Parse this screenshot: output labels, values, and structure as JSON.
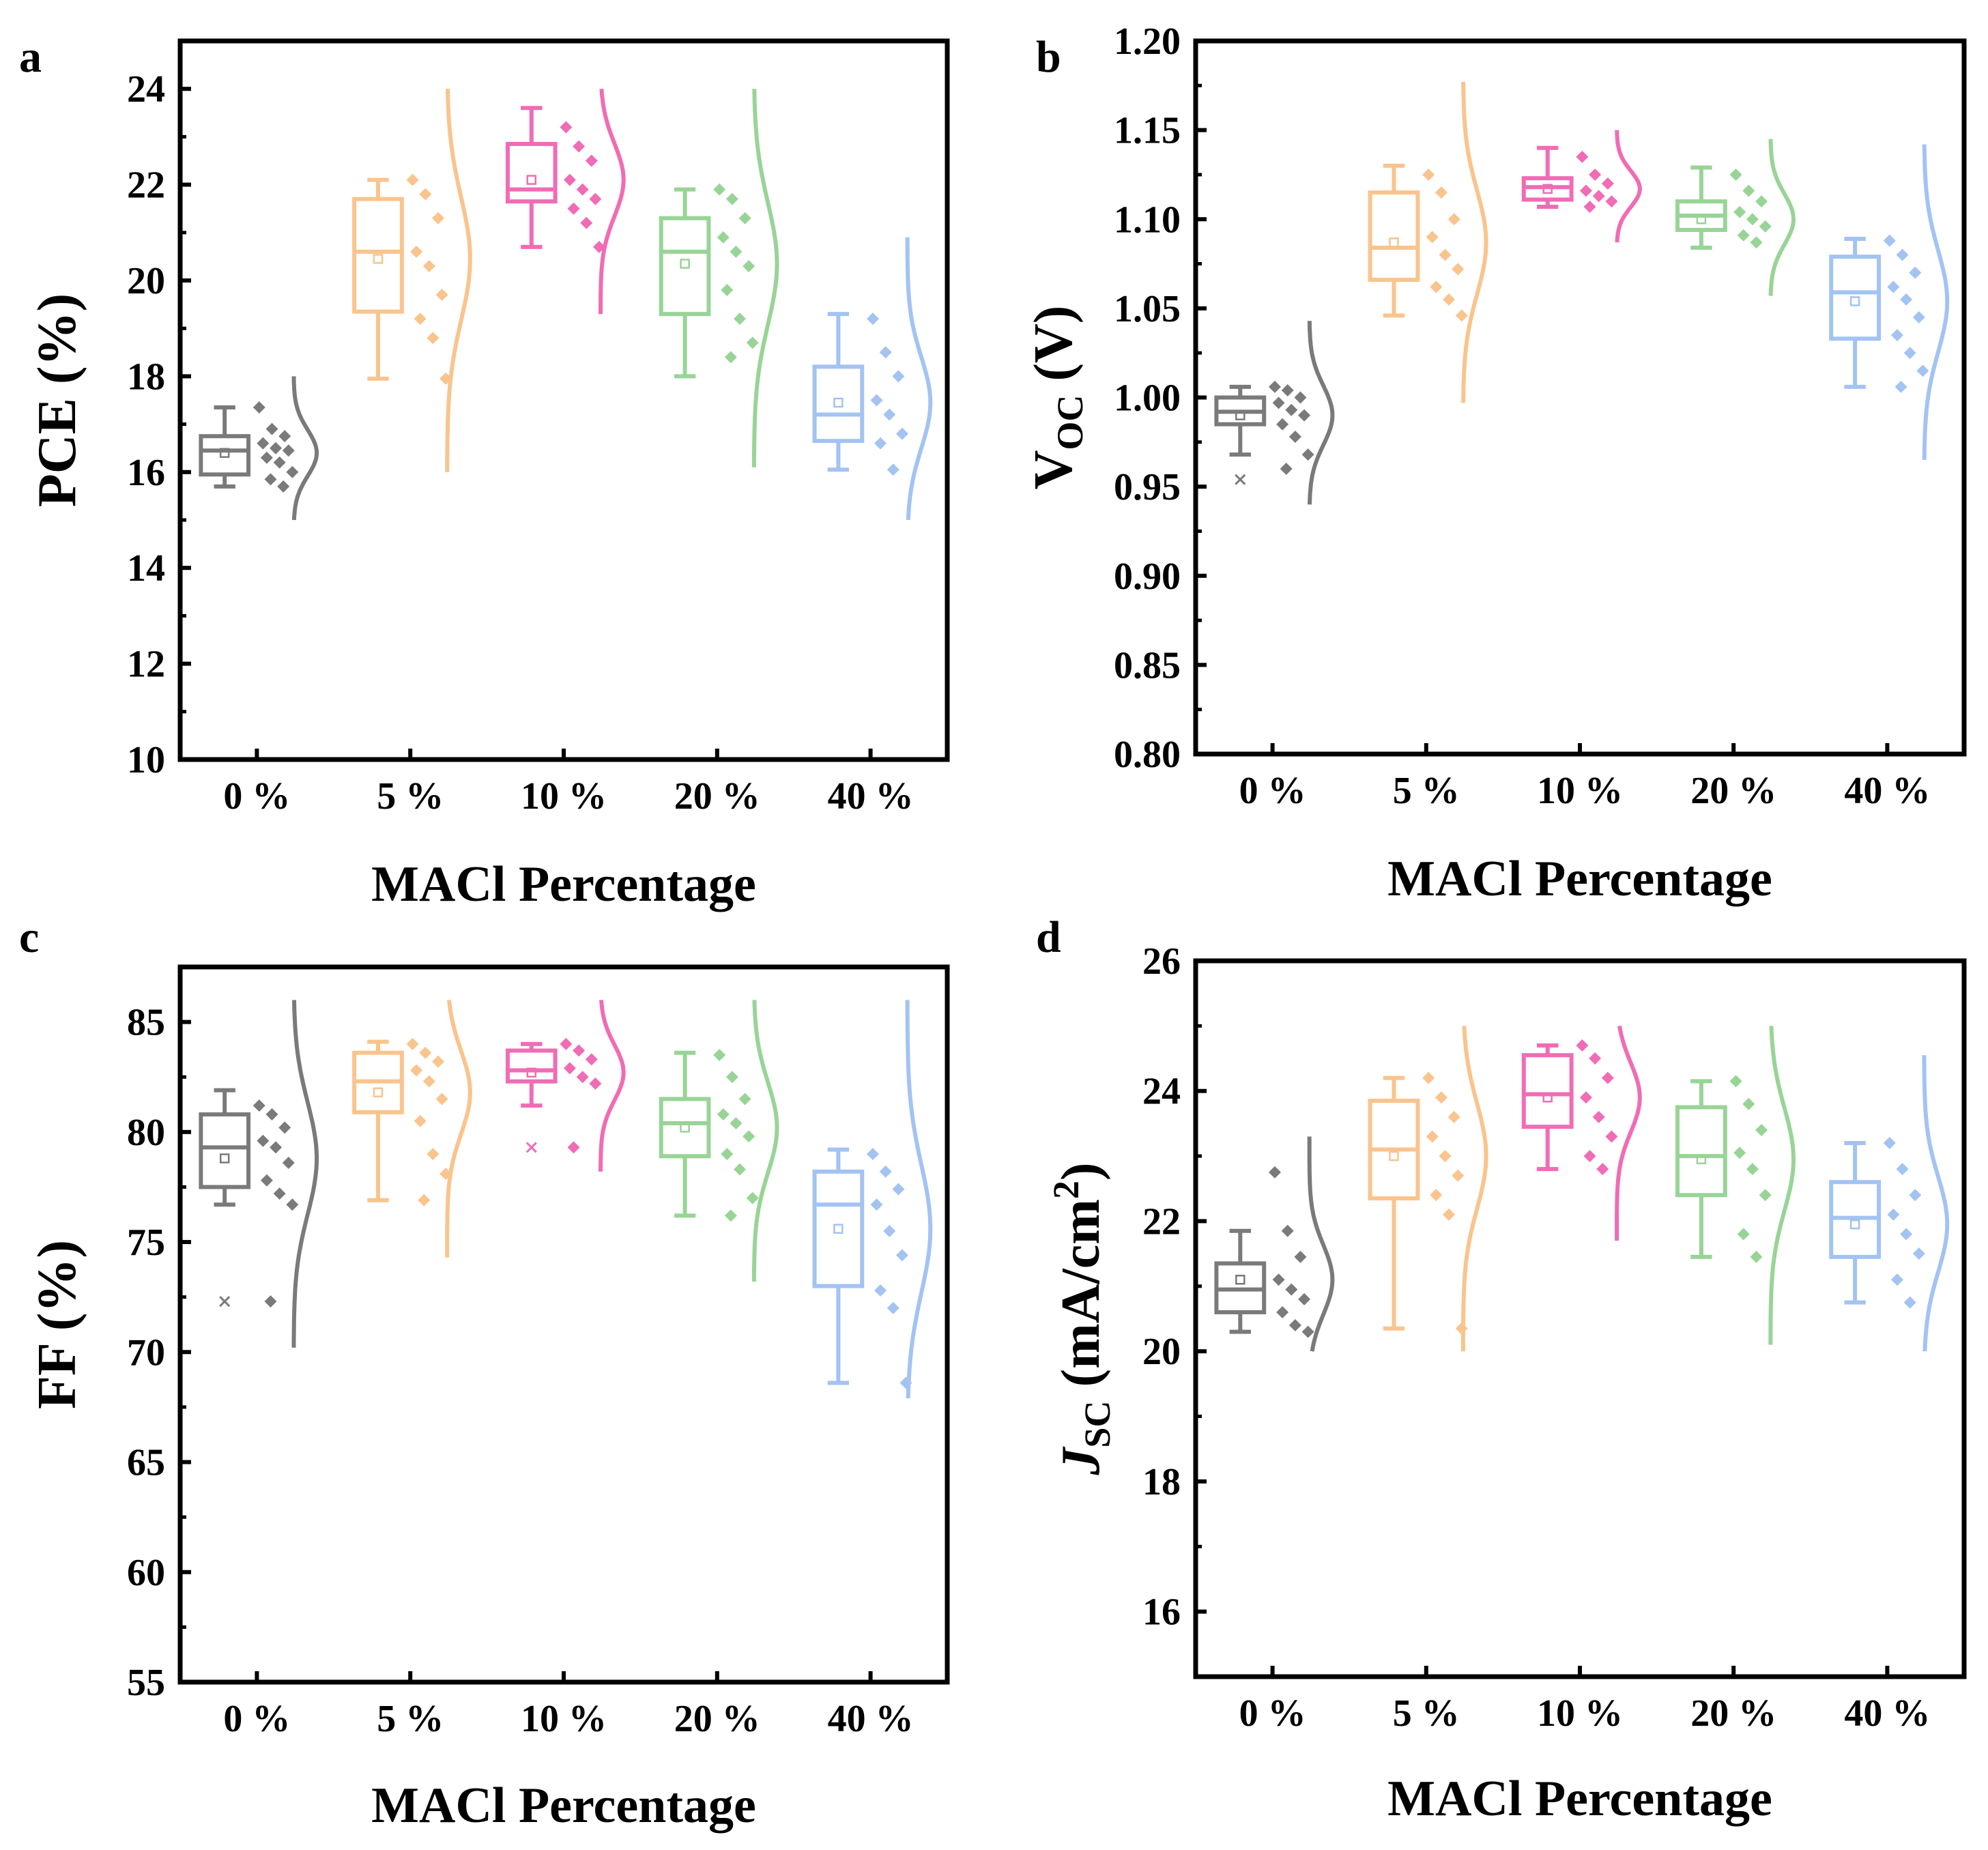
{
  "figure": {
    "title": ""
  },
  "colors": {
    "0 %": "#7a7a7a",
    "5 %": "#f9c48d",
    "10 %": "#f06cb4",
    "20 %": "#98d496",
    "40 %": "#a3c3f2"
  },
  "chart_data": [
    {
      "panel": "a",
      "type": "boxplot",
      "ylabel": "PCE (%)",
      "xlabel": "MACl Percentage",
      "ylim": [
        10,
        25
      ],
      "yticks": [
        10,
        12,
        14,
        16,
        18,
        20,
        22,
        24
      ],
      "ytick_labels": [
        "10",
        "12",
        "14",
        "16",
        "18",
        "20",
        "22",
        "24"
      ],
      "categories": [
        "0 %",
        "5 %",
        "10 %",
        "20 %",
        "40 %"
      ],
      "series": [
        {
          "name": "0 %",
          "whisker_low": 15.7,
          "q1": 15.95,
          "median": 16.45,
          "q3": 16.75,
          "whisker_high": 17.35,
          "mean": 16.4,
          "points": [
            17.35,
            16.9,
            16.75,
            16.6,
            16.5,
            16.45,
            16.3,
            16.2,
            16.0,
            15.85,
            15.7
          ],
          "curve": [
            15.0,
            18.0
          ]
        },
        {
          "name": "5 %",
          "whisker_low": 17.95,
          "q1": 19.35,
          "median": 20.6,
          "q3": 21.7,
          "whisker_high": 22.1,
          "mean": 20.45,
          "points": [
            22.1,
            21.8,
            21.3,
            20.6,
            20.3,
            19.7,
            19.2,
            18.8,
            17.95
          ],
          "curve": [
            16.0,
            24.0
          ]
        },
        {
          "name": "10 %",
          "whisker_low": 20.7,
          "q1": 21.65,
          "median": 21.9,
          "q3": 22.85,
          "whisker_high": 23.6,
          "mean": 22.1,
          "points": [
            23.2,
            22.8,
            22.5,
            22.1,
            21.9,
            21.7,
            21.5,
            21.2,
            20.7
          ],
          "curve": [
            19.3,
            24.0
          ]
        },
        {
          "name": "20 %",
          "whisker_low": 18.0,
          "q1": 19.3,
          "median": 20.6,
          "q3": 21.3,
          "whisker_high": 21.9,
          "mean": 20.35,
          "points": [
            21.9,
            21.7,
            21.3,
            20.9,
            20.6,
            20.3,
            19.8,
            19.2,
            18.7,
            18.4
          ],
          "curve": [
            16.1,
            24.0
          ]
        },
        {
          "name": "40 %",
          "whisker_low": 16.05,
          "q1": 16.65,
          "median": 17.2,
          "q3": 18.2,
          "whisker_high": 19.3,
          "mean": 17.45,
          "points": [
            19.2,
            18.5,
            18.0,
            17.5,
            17.2,
            16.8,
            16.6,
            16.05
          ],
          "curve": [
            15.0,
            20.9
          ]
        }
      ]
    },
    {
      "panel": "b",
      "type": "boxplot",
      "ylabel": "V",
      "ylabel_sub": "OC",
      "ylabel_suffix": " (V)",
      "xlabel": "MACl Percentage",
      "ylim": [
        0.8,
        1.2
      ],
      "yticks": [
        0.8,
        0.85,
        0.9,
        0.95,
        1.0,
        1.05,
        1.1,
        1.15,
        1.2
      ],
      "ytick_labels": [
        "0.80",
        "0.85",
        "0.90",
        "0.95",
        "1.00",
        "1.05",
        "1.10",
        "1.15",
        "1.20"
      ],
      "categories": [
        "0 %",
        "5 %",
        "10 %",
        "20 %",
        "40 %"
      ],
      "series": [
        {
          "name": "0 %",
          "whisker_low": 0.968,
          "q1": 0.985,
          "median": 0.992,
          "q3": 1.0,
          "whisker_high": 1.006,
          "mean": 0.99,
          "outliers": [
            0.954
          ],
          "points": [
            1.006,
            1.004,
            1.0,
            0.997,
            0.993,
            0.99,
            0.985,
            0.978,
            0.968,
            0.96
          ],
          "curve": [
            0.94,
            1.043
          ]
        },
        {
          "name": "5 %",
          "whisker_low": 1.046,
          "q1": 1.066,
          "median": 1.084,
          "q3": 1.115,
          "whisker_high": 1.13,
          "mean": 1.087,
          "points": [
            1.125,
            1.115,
            1.1,
            1.09,
            1.08,
            1.072,
            1.062,
            1.055,
            1.046
          ],
          "curve": [
            0.997,
            1.177
          ]
        },
        {
          "name": "10 %",
          "whisker_low": 1.107,
          "q1": 1.111,
          "median": 1.118,
          "q3": 1.123,
          "whisker_high": 1.14,
          "mean": 1.117,
          "points": [
            1.135,
            1.125,
            1.12,
            1.116,
            1.113,
            1.11,
            1.107
          ],
          "curve": [
            1.087,
            1.15
          ]
        },
        {
          "name": "20 %",
          "whisker_low": 1.084,
          "q1": 1.094,
          "median": 1.102,
          "q3": 1.11,
          "whisker_high": 1.129,
          "mean": 1.1,
          "points": [
            1.125,
            1.116,
            1.11,
            1.104,
            1.1,
            1.096,
            1.091,
            1.087
          ],
          "curve": [
            1.057,
            1.145
          ]
        },
        {
          "name": "40 %",
          "whisker_low": 1.006,
          "q1": 1.033,
          "median": 1.059,
          "q3": 1.079,
          "whisker_high": 1.089,
          "mean": 1.054,
          "points": [
            1.088,
            1.08,
            1.07,
            1.062,
            1.055,
            1.045,
            1.035,
            1.025,
            1.015,
            1.006
          ],
          "curve": [
            0.965,
            1.142
          ]
        }
      ]
    },
    {
      "panel": "c",
      "type": "boxplot",
      "ylabel": "FF (%)",
      "xlabel": "MACl Percentage",
      "ylim": [
        55,
        87.5
      ],
      "yticks": [
        55,
        60,
        65,
        70,
        75,
        80,
        85
      ],
      "ytick_labels": [
        "55",
        "60",
        "65",
        "70",
        "75",
        "80",
        "85"
      ],
      "categories": [
        "0 %",
        "5 %",
        "10 %",
        "20 %",
        "40 %"
      ],
      "series": [
        {
          "name": "0 %",
          "whisker_low": 76.7,
          "q1": 77.5,
          "median": 79.3,
          "q3": 80.8,
          "whisker_high": 81.9,
          "mean": 78.8,
          "outliers": [
            72.3
          ],
          "points": [
            81.2,
            80.8,
            80.2,
            79.6,
            79.3,
            78.6,
            77.8,
            77.2,
            76.7,
            72.3
          ],
          "curve": [
            70.2,
            86.0
          ]
        },
        {
          "name": "5 %",
          "whisker_low": 76.9,
          "q1": 80.9,
          "median": 82.3,
          "q3": 83.6,
          "whisker_high": 84.1,
          "mean": 81.8,
          "points": [
            84.0,
            83.6,
            83.2,
            82.8,
            82.3,
            81.5,
            80.5,
            79.0,
            78.1,
            76.9
          ],
          "curve": [
            74.3,
            86.0
          ]
        },
        {
          "name": "10 %",
          "whisker_low": 81.2,
          "q1": 82.3,
          "median": 82.8,
          "q3": 83.7,
          "whisker_high": 84.0,
          "mean": 82.7,
          "outliers": [
            79.3
          ],
          "points": [
            84.0,
            83.7,
            83.3,
            82.9,
            82.5,
            82.2,
            79.3
          ],
          "curve": [
            78.2,
            86.0
          ]
        },
        {
          "name": "20 %",
          "whisker_low": 76.2,
          "q1": 78.9,
          "median": 80.4,
          "q3": 81.5,
          "whisker_high": 83.6,
          "mean": 80.2,
          "points": [
            83.5,
            82.5,
            81.5,
            80.8,
            80.4,
            79.8,
            79.0,
            78.3,
            77.0,
            76.2
          ],
          "curve": [
            73.2,
            86.0
          ]
        },
        {
          "name": "40 %",
          "whisker_low": 68.6,
          "q1": 73.0,
          "median": 76.7,
          "q3": 78.2,
          "whisker_high": 79.2,
          "mean": 75.6,
          "points": [
            79.0,
            78.2,
            77.4,
            76.7,
            75.5,
            74.4,
            72.8,
            72.0,
            68.6
          ],
          "curve": [
            67.9,
            86.0
          ]
        }
      ]
    },
    {
      "panel": "d",
      "type": "boxplot",
      "ylabel": "J",
      "ylabel_sub": "SC",
      "ylabel_suffix": " (mA/cm",
      "ylabel_sup": "2",
      "ylabel_end": ")",
      "xlabel": "MACl Percentage",
      "ylim": [
        15,
        26
      ],
      "yticks": [
        16,
        18,
        20,
        22,
        24,
        26
      ],
      "ytick_labels": [
        "16",
        "18",
        "20",
        "22",
        "24",
        "26"
      ],
      "categories": [
        "0 %",
        "5 %",
        "10 %",
        "20 %",
        "40 %"
      ],
      "series": [
        {
          "name": "0 %",
          "whisker_low": 20.3,
          "q1": 20.6,
          "median": 20.95,
          "q3": 21.35,
          "whisker_high": 21.85,
          "mean": 21.1,
          "points": [
            22.75,
            21.85,
            21.45,
            21.1,
            20.95,
            20.8,
            20.6,
            20.4,
            20.3
          ],
          "curve": [
            20.0,
            23.3
          ]
        },
        {
          "name": "5 %",
          "whisker_low": 20.35,
          "q1": 22.35,
          "median": 23.1,
          "q3": 23.85,
          "whisker_high": 24.2,
          "mean": 23.0,
          "points": [
            24.2,
            23.9,
            23.6,
            23.3,
            23.0,
            22.7,
            22.4,
            22.1,
            20.35
          ],
          "curve": [
            20.0,
            25.0
          ]
        },
        {
          "name": "10 %",
          "whisker_low": 22.8,
          "q1": 23.45,
          "median": 23.95,
          "q3": 24.55,
          "whisker_high": 24.7,
          "mean": 23.9,
          "points": [
            24.7,
            24.5,
            24.2,
            23.9,
            23.6,
            23.3,
            23.0,
            22.8
          ],
          "curve": [
            21.7,
            25.0
          ]
        },
        {
          "name": "20 %",
          "whisker_low": 21.45,
          "q1": 22.4,
          "median": 23.0,
          "q3": 23.75,
          "whisker_high": 24.15,
          "mean": 22.95,
          "points": [
            24.15,
            23.8,
            23.4,
            23.05,
            22.8,
            22.4,
            21.8,
            21.45
          ],
          "curve": [
            20.1,
            25.0
          ]
        },
        {
          "name": "40 %",
          "whisker_low": 20.75,
          "q1": 21.45,
          "median": 22.05,
          "q3": 22.6,
          "whisker_high": 23.2,
          "mean": 21.95,
          "points": [
            23.2,
            22.8,
            22.4,
            22.1,
            21.8,
            21.5,
            21.1,
            20.75
          ],
          "curve": [
            20.0,
            24.55
          ]
        }
      ]
    }
  ]
}
